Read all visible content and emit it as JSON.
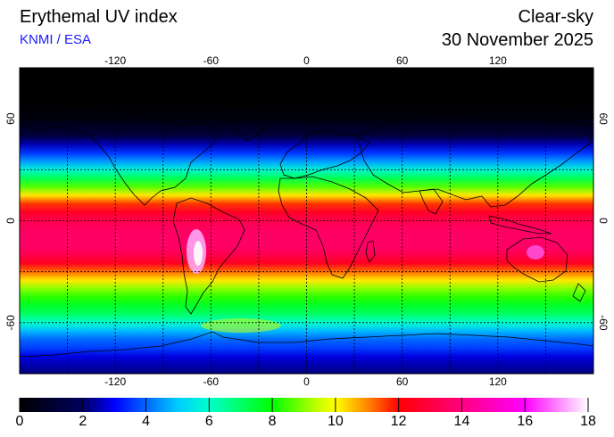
{
  "header": {
    "title": "Erythemal UV index",
    "source": "KNMI / ESA",
    "mode": "Clear-sky",
    "date": "30 November 2025"
  },
  "map": {
    "projection": "equirectangular",
    "lon_range": [
      -180,
      180
    ],
    "lat_range": [
      -90,
      90
    ],
    "lon_ticks": [
      "-120",
      "-60",
      "0",
      "60",
      "120"
    ],
    "lat_ticks": [
      "60",
      "0",
      "-60"
    ],
    "gridlines": "dotted every 30 degrees",
    "colors": {
      "frame": "#000000",
      "coastline": "#000000"
    }
  },
  "colorbar": {
    "min": 0,
    "max": 18,
    "labels": [
      "0",
      "2",
      "4",
      "6",
      "8",
      "10",
      "12",
      "14",
      "16",
      "18"
    ],
    "stops": [
      {
        "value": 0,
        "color": "#000000"
      },
      {
        "value": 2,
        "color": "#000060"
      },
      {
        "value": 3,
        "color": "#0000ff"
      },
      {
        "value": 5,
        "color": "#00ccff"
      },
      {
        "value": 6,
        "color": "#00ffcc"
      },
      {
        "value": 8,
        "color": "#00ff00"
      },
      {
        "value": 9.5,
        "color": "#ccff00"
      },
      {
        "value": 10,
        "color": "#ffff00"
      },
      {
        "value": 11,
        "color": "#ff8800"
      },
      {
        "value": 12,
        "color": "#ff0000"
      },
      {
        "value": 14,
        "color": "#ff0080"
      },
      {
        "value": 16,
        "color": "#ff00ff"
      },
      {
        "value": 18,
        "color": "#ffffff"
      }
    ]
  },
  "uv_profile_by_latitude": {
    "lat": [
      90,
      70,
      60,
      50,
      45,
      40,
      35,
      30,
      25,
      20,
      15,
      10,
      5,
      0,
      -5,
      -10,
      -15,
      -20,
      -25,
      -30,
      -35,
      -40,
      -45,
      -50,
      -55,
      -60,
      -65,
      -70,
      -75,
      -80,
      -90
    ],
    "uv": [
      0,
      0,
      0.3,
      1.2,
      2.5,
      3.5,
      4.5,
      5.8,
      7.2,
      8.6,
      10.2,
      11.6,
      12.6,
      13.2,
      13.5,
      13.6,
      13.6,
      13.2,
      12.5,
      11.2,
      10.2,
      9.0,
      8.3,
      7.6,
      7.0,
      6.0,
      4.8,
      4.0,
      3.6,
      2.8,
      2.2
    ]
  }
}
